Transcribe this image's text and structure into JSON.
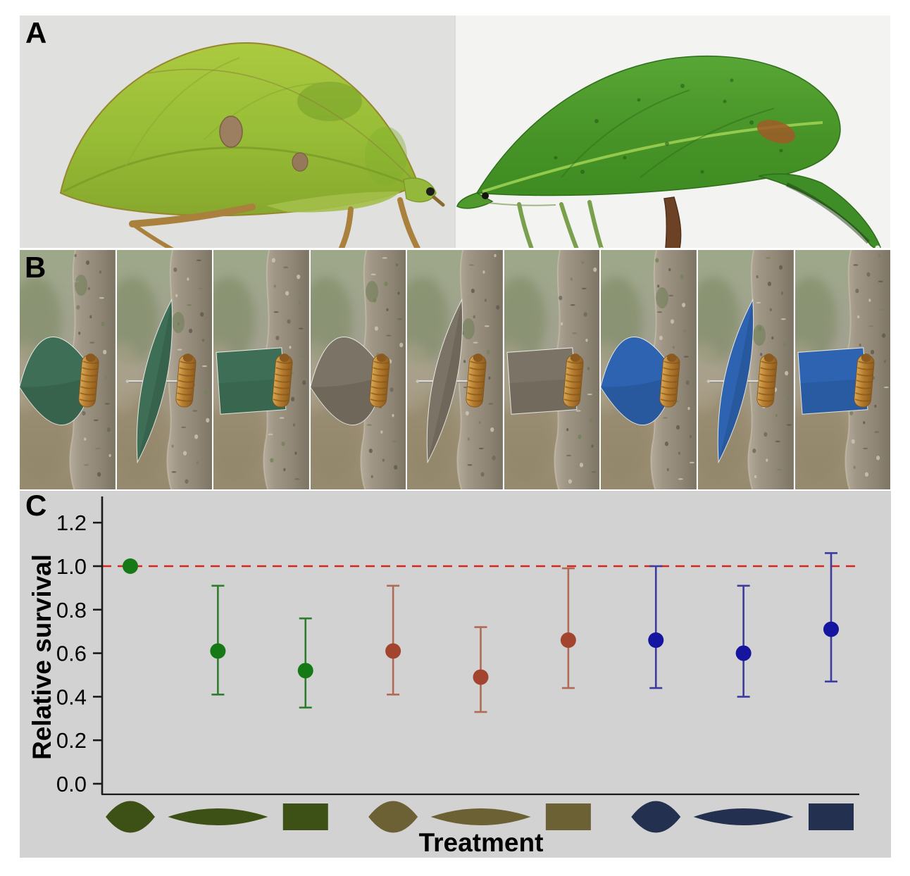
{
  "panel_labels": {
    "a": "A",
    "b": "B",
    "c": "C"
  },
  "panel_a": {
    "photos": [
      {
        "name": "leaf-mimic-katydid-left",
        "subject": "yellow-green leaf-mimicking katydid",
        "facing": "right"
      },
      {
        "name": "leaf-mimic-katydid-right",
        "subject": "dark green leaf-mimicking katydid",
        "facing": "left"
      }
    ]
  },
  "panel_b": {
    "cells": [
      {
        "shape": "leaf",
        "color_name": "green"
      },
      {
        "shape": "narrow-leaf",
        "color_name": "green"
      },
      {
        "shape": "rectangle",
        "color_name": "green"
      },
      {
        "shape": "leaf",
        "color_name": "brown"
      },
      {
        "shape": "narrow-leaf",
        "color_name": "brown"
      },
      {
        "shape": "rectangle",
        "color_name": "brown"
      },
      {
        "shape": "leaf",
        "color_name": "blue"
      },
      {
        "shape": "narrow-leaf",
        "color_name": "blue"
      },
      {
        "shape": "rectangle",
        "color_name": "blue"
      }
    ],
    "paper_colors": {
      "green": "#3e6f56",
      "brown": "#7b7365",
      "blue": "#2d63b0"
    }
  },
  "chart_data": {
    "type": "scatter",
    "title": "",
    "xlabel": "Treatment",
    "ylabel": "Relative survival",
    "ylim": [
      -0.08,
      1.32
    ],
    "yticks": [
      0.0,
      0.2,
      0.4,
      0.6,
      0.8,
      1.0,
      1.2
    ],
    "grid": false,
    "legend": "none",
    "reference_line": {
      "y": 1.0,
      "color": "#d4281c",
      "style": "dashed"
    },
    "points": [
      {
        "x": 1,
        "shape": "leaf",
        "color_group": "green",
        "value": 1.0,
        "ci_low": null,
        "ci_high": null
      },
      {
        "x": 2,
        "shape": "narrow-leaf",
        "color_group": "green",
        "value": 0.61,
        "ci_low": 0.41,
        "ci_high": 0.91
      },
      {
        "x": 3,
        "shape": "rectangle",
        "color_group": "green",
        "value": 0.52,
        "ci_low": 0.35,
        "ci_high": 0.76
      },
      {
        "x": 4,
        "shape": "leaf",
        "color_group": "brown",
        "value": 0.61,
        "ci_low": 0.41,
        "ci_high": 0.91
      },
      {
        "x": 5,
        "shape": "narrow-leaf",
        "color_group": "brown",
        "value": 0.49,
        "ci_low": 0.33,
        "ci_high": 0.72
      },
      {
        "x": 6,
        "shape": "rectangle",
        "color_group": "brown",
        "value": 0.66,
        "ci_low": 0.44,
        "ci_high": 0.99
      },
      {
        "x": 7,
        "shape": "leaf",
        "color_group": "blue",
        "value": 0.66,
        "ci_low": 0.44,
        "ci_high": 1.0
      },
      {
        "x": 8,
        "shape": "narrow-leaf",
        "color_group": "blue",
        "value": 0.6,
        "ci_low": 0.4,
        "ci_high": 0.91
      },
      {
        "x": 9,
        "shape": "rectangle",
        "color_group": "blue",
        "value": 0.71,
        "ci_low": 0.47,
        "ci_high": 1.06
      }
    ],
    "marker_colors": {
      "green": {
        "point": "#157a15",
        "bar": "#2e7d2e",
        "icon": "#3d5016"
      },
      "brown": {
        "point": "#a3452e",
        "bar": "#b06a55",
        "icon": "#6c6134"
      },
      "blue": {
        "point": "#1515a0",
        "bar": "#3c3c9e",
        "icon": "#23304f"
      }
    }
  }
}
